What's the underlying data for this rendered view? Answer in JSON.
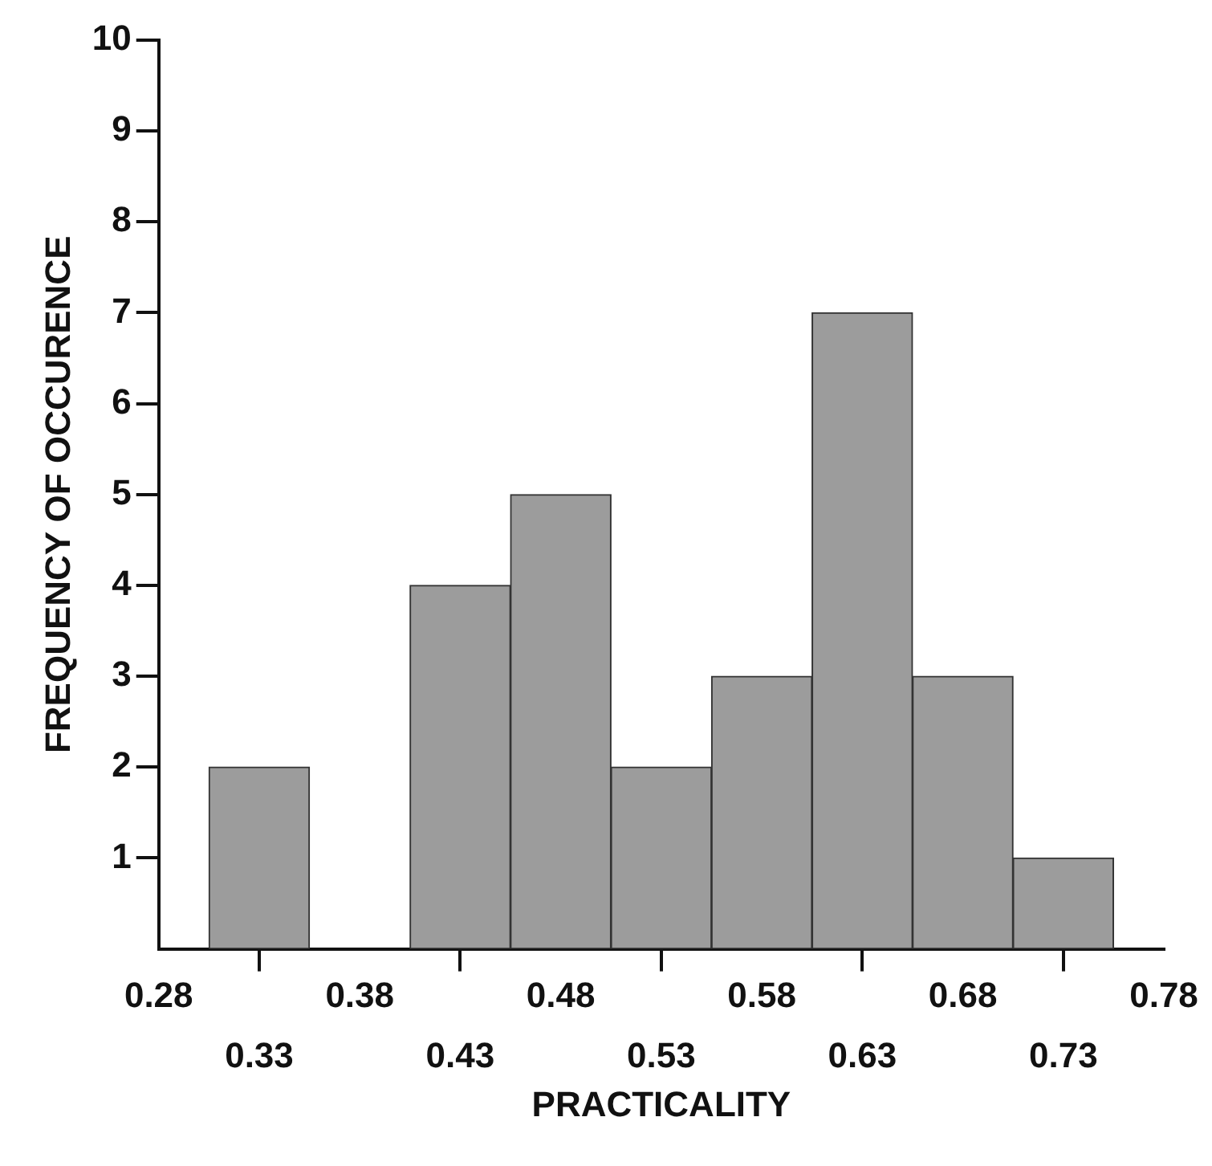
{
  "chart_data": {
    "type": "histogram",
    "xlabel": "PRACTICALITY",
    "ylabel": "FREQUENCY OF OCCURENCE",
    "bins": [
      0.305,
      0.355,
      0.405,
      0.455,
      0.505,
      0.555,
      0.605,
      0.655,
      0.705,
      0.755
    ],
    "values": [
      2,
      0,
      4,
      5,
      2,
      3,
      7,
      3,
      1
    ],
    "color": "#9c9c9c",
    "xlim": [
      0.28,
      0.78
    ],
    "xticks": [
      0.28,
      0.38,
      0.48,
      0.58,
      0.68,
      0.78
    ],
    "x2lim": [
      0.28,
      0.78
    ],
    "x2ticks": [
      0.33,
      0.43,
      0.53,
      0.63,
      0.73
    ],
    "ylim": [
      0,
      10
    ],
    "yticks": [
      1,
      2,
      3,
      4,
      5,
      6,
      7,
      8,
      9,
      10
    ],
    "grid": false,
    "legend": false
  }
}
